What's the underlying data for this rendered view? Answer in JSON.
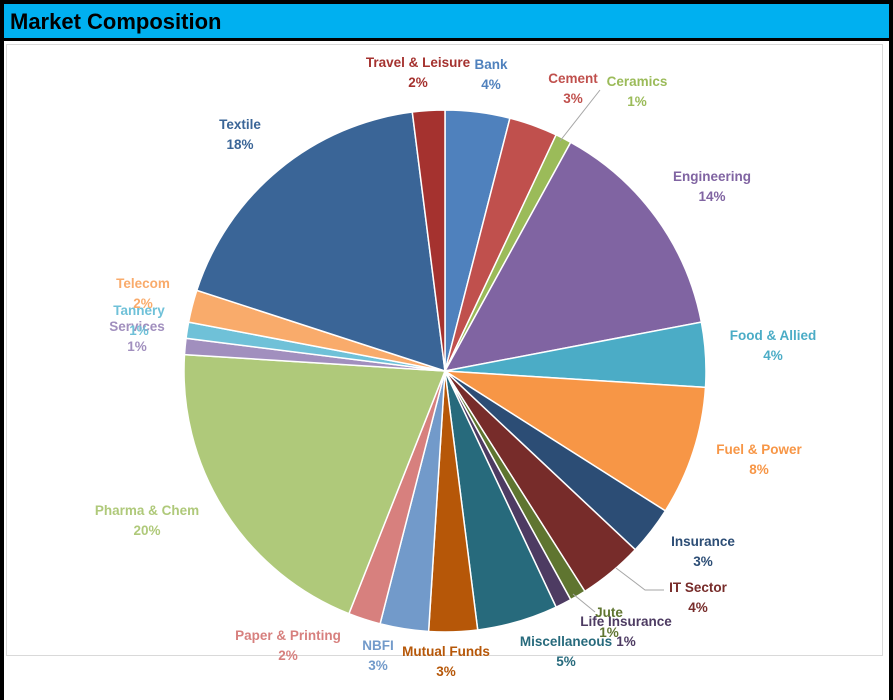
{
  "title": "Market Composition",
  "chart_data": {
    "type": "pie",
    "title": "Market Composition",
    "slices": [
      {
        "label": "Bank",
        "value": 4,
        "pct": "4%",
        "color": "#4f81bd"
      },
      {
        "label": "Cement",
        "value": 3,
        "pct": "3%",
        "color": "#c0504d"
      },
      {
        "label": "Ceramics",
        "value": 1,
        "pct": "1%",
        "color": "#9bbb59"
      },
      {
        "label": "Engineering",
        "value": 14,
        "pct": "14%",
        "color": "#8064a2"
      },
      {
        "label": "Food & Allied",
        "value": 4,
        "pct": "4%",
        "color": "#4bacc6"
      },
      {
        "label": "Fuel & Power",
        "value": 8,
        "pct": "8%",
        "color": "#f79646"
      },
      {
        "label": "Insurance",
        "value": 3,
        "pct": "3%",
        "color": "#2c4d75"
      },
      {
        "label": "IT Sector",
        "value": 4,
        "pct": "4%",
        "color": "#772c2a"
      },
      {
        "label": "Jute",
        "value": 1,
        "pct": "1%",
        "color": "#5f7530"
      },
      {
        "label": "Life Insurance",
        "value": 1,
        "pct": "1%",
        "color": "#4d3b62"
      },
      {
        "label": "Miscellaneous",
        "value": 5,
        "pct": "5%",
        "color": "#276a7c"
      },
      {
        "label": "Mutual Funds",
        "value": 3,
        "pct": "3%",
        "color": "#b65708"
      },
      {
        "label": "NBFI",
        "value": 3,
        "pct": "3%",
        "color": "#729aca"
      },
      {
        "label": "Paper & Printing",
        "value": 2,
        "pct": "2%",
        "color": "#d7807e"
      },
      {
        "label": "Pharma & Chem",
        "value": 20,
        "pct": "20%",
        "color": "#afc97a"
      },
      {
        "label": "Services",
        "value": 1,
        "pct": "1%",
        "color": "#a18fbe"
      },
      {
        "label": "Tannery",
        "value": 1,
        "pct": "1%",
        "color": "#6fc1d8"
      },
      {
        "label": "Telecom",
        "value": 2,
        "pct": "2%",
        "color": "#f9ab6b"
      },
      {
        "label": "Textile",
        "value": 18,
        "pct": "18%",
        "color": "#3a6597"
      },
      {
        "label": "Travel & Leisure",
        "value": 2,
        "pct": "2%",
        "color": "#a5322f"
      }
    ]
  }
}
